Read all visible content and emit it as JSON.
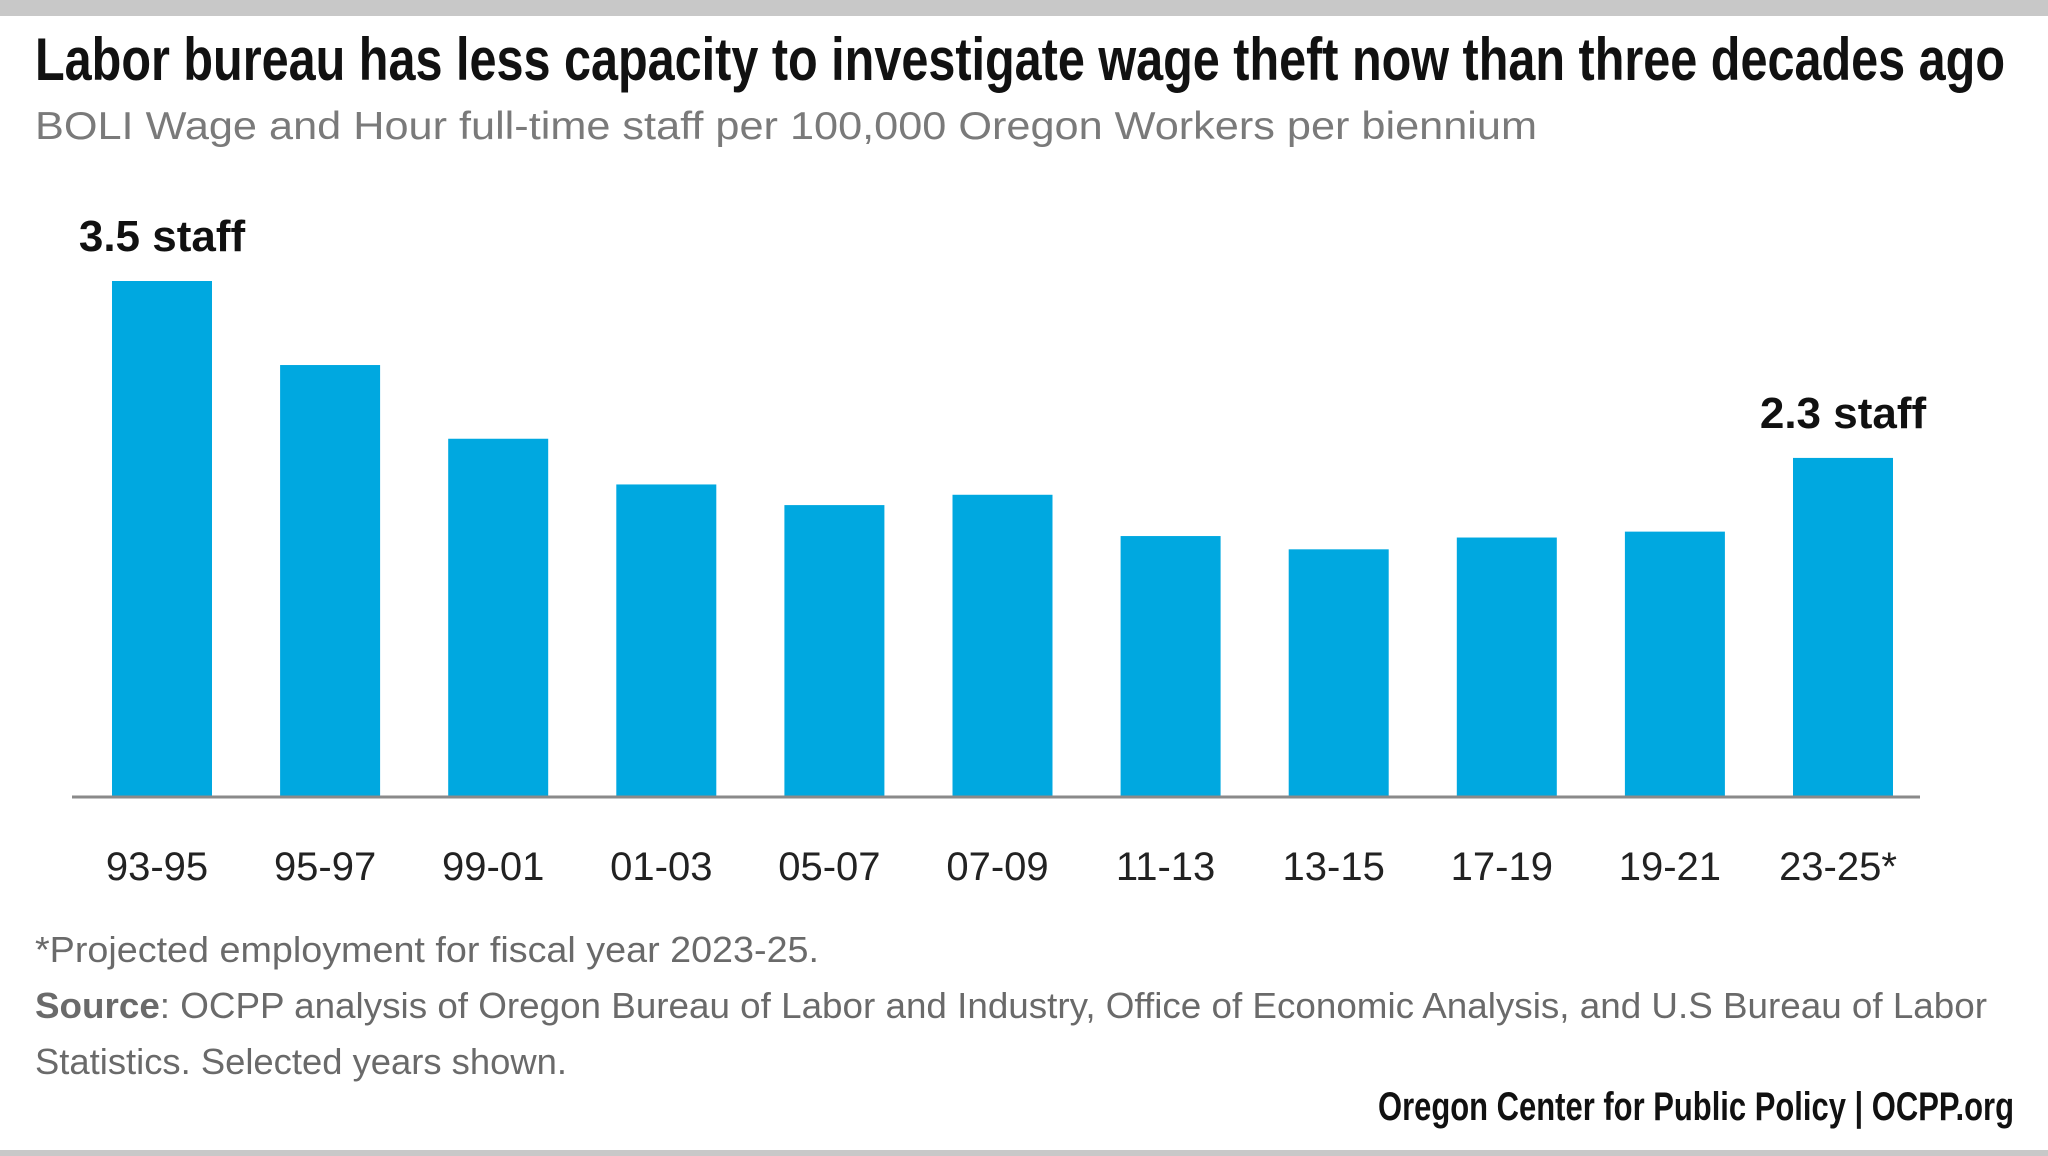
{
  "title": "Labor bureau has less capacity to investigate wage theft now than three decades ago",
  "subtitle": "BOLI Wage and Hour full-time staff per 100,000 Oregon Workers per biennium",
  "footnote": "*Projected employment for fiscal year 2023-25.",
  "source_label": "Source",
  "source_text": ": OCPP analysis of Oregon Bureau of Labor and Industry, Office of Economic Analysis, and U.S Bureau of Labor",
  "source_text_2": "Statistics. Selected years shown.",
  "credit": "Oregon Center for Public Policy | OCPP.org",
  "colors": {
    "bar": "#00a8e0",
    "axis": "#8a8a8a",
    "frame": "#c8c8c8",
    "subtitle": "#7a7a7a",
    "notes": "#6a6a6a"
  },
  "chart_data": {
    "type": "bar",
    "title": "Labor bureau has less capacity to investigate wage theft now than three decades ago",
    "subtitle": "BOLI Wage and Hour full-time staff per 100,000 Oregon Workers per biennium",
    "xlabel": "",
    "ylabel": "",
    "categories": [
      "93-95",
      "95-97",
      "99-01",
      "01-03",
      "05-07",
      "07-09",
      "11-13",
      "13-15",
      "17-19",
      "19-21",
      "23-25*"
    ],
    "values": [
      3.5,
      2.93,
      2.43,
      2.12,
      1.98,
      2.05,
      1.77,
      1.68,
      1.76,
      1.8,
      2.3
    ],
    "ylim": [
      0,
      3.5
    ],
    "grid": false,
    "y_axis_shown": false,
    "annotations": [
      {
        "category": "93-95",
        "text": "3.5 staff"
      },
      {
        "category": "23-25*",
        "text": "2.3 staff"
      }
    ]
  }
}
